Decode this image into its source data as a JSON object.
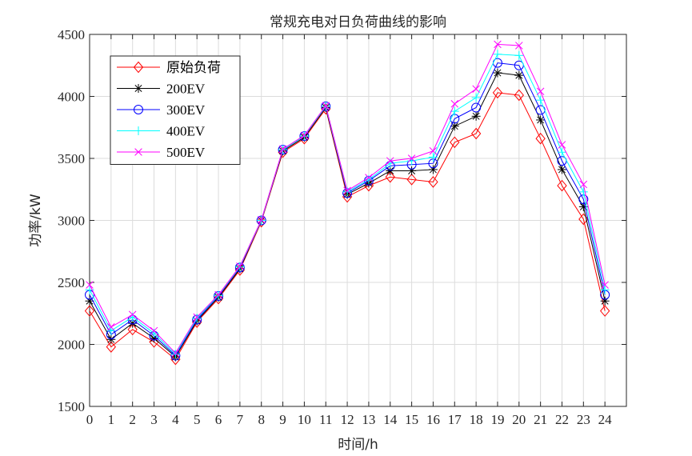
{
  "chart_data": {
    "type": "line",
    "title": "常规充电对日负荷曲线的影响",
    "xlabel": "时间/h",
    "ylabel": "功率/kW",
    "xlim": [
      0,
      25
    ],
    "ylim": [
      1500,
      4500
    ],
    "xticks": [
      0,
      1,
      2,
      3,
      4,
      5,
      6,
      7,
      8,
      9,
      10,
      11,
      12,
      13,
      14,
      15,
      16,
      17,
      18,
      19,
      20,
      21,
      22,
      23,
      24
    ],
    "yticks": [
      1500,
      2000,
      2500,
      3000,
      3500,
      4000,
      4500
    ],
    "grid": true,
    "legend_position": "top-left",
    "x": [
      0,
      1,
      2,
      3,
      4,
      5,
      6,
      7,
      8,
      9,
      10,
      11,
      12,
      13,
      14,
      15,
      16,
      17,
      18,
      19,
      20,
      21,
      22,
      23,
      24
    ],
    "series": [
      {
        "name": "原始负荷",
        "color": "#ff0000",
        "marker": "diamond",
        "values": [
          2270,
          1980,
          2120,
          2020,
          1880,
          2180,
          2370,
          2600,
          2990,
          3550,
          3660,
          3900,
          3190,
          3280,
          3350,
          3330,
          3310,
          3630,
          3700,
          4030,
          4010,
          3660,
          3280,
          3010,
          2270
        ]
      },
      {
        "name": "200EV",
        "color": "#000000",
        "marker": "asterisk",
        "values": [
          2350,
          2040,
          2170,
          2050,
          1900,
          2190,
          2380,
          2610,
          3000,
          3560,
          3670,
          3910,
          3210,
          3300,
          3400,
          3400,
          3410,
          3760,
          3840,
          4190,
          4170,
          3810,
          3410,
          3110,
          2350
        ]
      },
      {
        "name": "300EV",
        "color": "#0000ff",
        "marker": "circle",
        "values": [
          2400,
          2080,
          2200,
          2070,
          1910,
          2200,
          2390,
          2620,
          3000,
          3570,
          3680,
          3920,
          3220,
          3320,
          3440,
          3450,
          3460,
          3820,
          3910,
          4270,
          4250,
          3890,
          3480,
          3170,
          2400
        ]
      },
      {
        "name": "400EV",
        "color": "#00ffff",
        "marker": "plus",
        "values": [
          2440,
          2110,
          2220,
          2090,
          1920,
          2210,
          2395,
          2625,
          3000,
          3570,
          3680,
          3920,
          3230,
          3330,
          3460,
          3480,
          3510,
          3880,
          3990,
          4340,
          4330,
          3970,
          3550,
          3230,
          2440
        ]
      },
      {
        "name": "500EV",
        "color": "#ff00ff",
        "marker": "x",
        "values": [
          2480,
          2140,
          2240,
          2110,
          1930,
          2220,
          2400,
          2630,
          3005,
          3575,
          3685,
          3925,
          3240,
          3345,
          3480,
          3500,
          3560,
          3940,
          4060,
          4420,
          4410,
          4040,
          3610,
          3290,
          2480
        ]
      }
    ]
  }
}
